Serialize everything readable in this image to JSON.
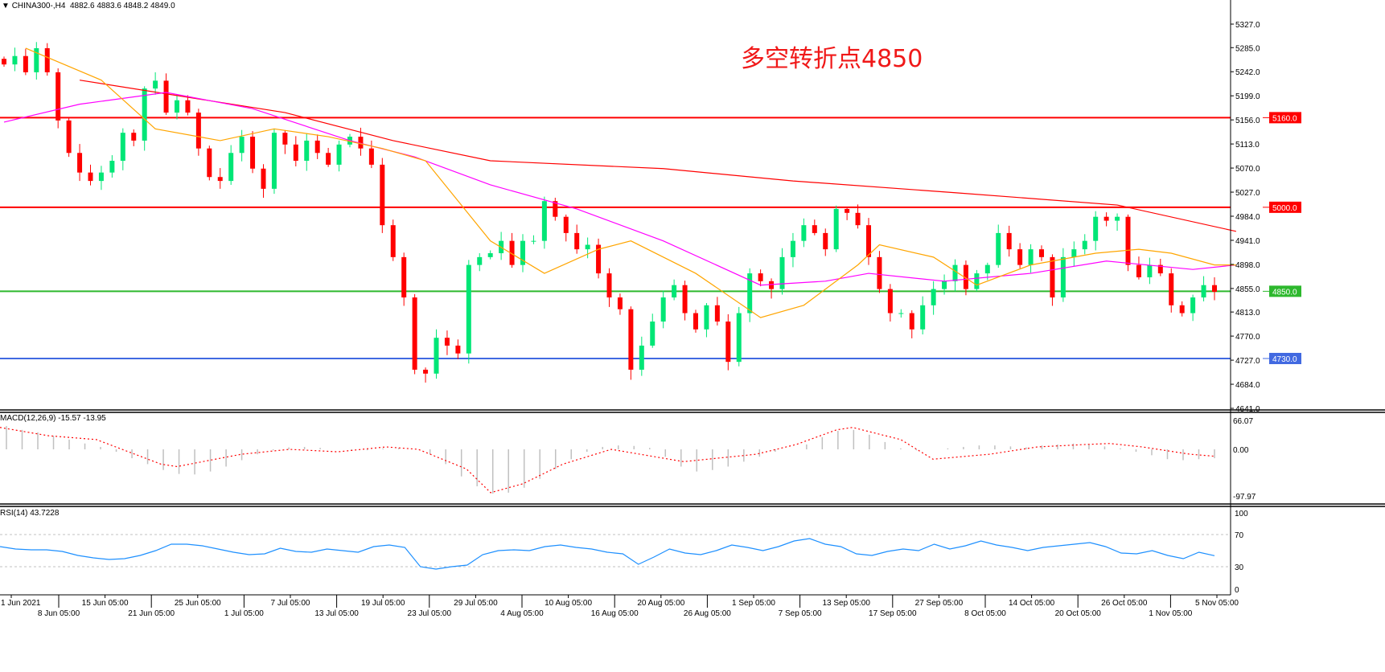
{
  "header": {
    "symbol": "CHINA300-,H4",
    "ohlc": "4882.6 4883.6 4848.2 4849.0"
  },
  "annotation": "多空转折点4850",
  "macd_label": "MACD(12,26,9) -15.57 -13.95",
  "rsi_label": "RSI(14) 43.7228",
  "colors": {
    "up": "#00e676",
    "down": "#ff0000",
    "ma_short": "#ffa500",
    "ma_mid": "#ff00ff",
    "ma_long": "#ff0000",
    "rsi": "#1e90ff",
    "macd_hist": "#c0c0c0",
    "macd_signal": "#ff0000"
  },
  "chart_data": [
    {
      "type": "candlestick",
      "name": "CHINA300-,H4",
      "price_axis": {
        "range": [
          4641,
          5327
        ],
        "ticks": [
          "5327.0",
          "5285.0",
          "5242.0",
          "5199.0",
          "5156.0",
          "5113.0",
          "5070.0",
          "5027.0",
          "4984.0",
          "4941.0",
          "4898.0",
          "4855.0",
          "4813.0",
          "4770.0",
          "4727.0",
          "4684.0",
          "4641.0"
        ]
      },
      "time_axis": {
        "ticks": [
          "1 Jun 2021",
          "8 Jun 05:00",
          "15 Jun 05:00",
          "21 Jun 05:00",
          "25 Jun 05:00",
          "1 Jul 05:00",
          "7 Jul 05:00",
          "13 Jul 05:00",
          "19 Jul 05:00",
          "23 Jul 05:00",
          "29 Jul 05:00",
          "4 Aug 05:00",
          "10 Aug 05:00",
          "16 Aug 05:00",
          "20 Aug 05:00",
          "26 Aug 05:00",
          "1 Sep 05:00",
          "7 Sep 05:00",
          "13 Sep 05:00",
          "17 Sep 05:00",
          "27 Sep 05:00",
          "8 Oct 05:00",
          "14 Oct 05:00",
          "20 Oct 05:00",
          "26 Oct 05:00",
          "1 Nov 05:00",
          "5 Nov 05:00"
        ]
      },
      "closes": [
        5255,
        5270,
        5241,
        5284,
        5241,
        5155,
        5097,
        5062,
        5047,
        5062,
        5083,
        5133,
        5119,
        5212,
        5226,
        5169,
        5191,
        5169,
        5105,
        5054,
        5047,
        5097,
        5126,
        5069,
        5033,
        5133,
        5112,
        5083,
        5119,
        5097,
        5076,
        5112,
        5126,
        5105,
        5076,
        4968,
        4911,
        4839,
        4710,
        4703,
        4767,
        4753,
        4739,
        4897,
        4911,
        4918,
        4940,
        4897,
        4940,
        4940,
        5011,
        4983,
        4954,
        4925,
        4933,
        4882,
        4839,
        4818,
        4710,
        4753,
        4796,
        4839,
        4861,
        4811,
        4782,
        4825,
        4796,
        4724,
        4811,
        4882,
        4868,
        4854,
        4911,
        4940,
        4968,
        4954,
        4925,
        4997,
        4990,
        4968,
        4911,
        4854,
        4811,
        4811,
        4782,
        4825,
        4854,
        4868,
        4897,
        4854,
        4882,
        4897,
        4954,
        4925,
        4897,
        4925,
        4911,
        4839,
        4911,
        4925,
        4940,
        4983,
        4976,
        4983,
        4897,
        4875,
        4897,
        4882,
        4825,
        4811,
        4839,
        4861,
        4849
      ],
      "moving_averages": [
        {
          "color_key": "ma_long",
          "points": [
            [
              7,
              5227
            ],
            [
              26,
              5169
            ],
            [
              36,
              5119
            ],
            [
              45,
              5083
            ],
            [
              61,
              5069
            ],
            [
              73,
              5047
            ],
            [
              88,
              5026
            ],
            [
              103,
              5004
            ],
            [
              114,
              4957
            ]
          ]
        },
        {
          "color_key": "ma_mid",
          "points": [
            [
              0,
              5152
            ],
            [
              7,
              5184
            ],
            [
              15,
              5205
            ],
            [
              23,
              5176
            ],
            [
              32,
              5119
            ],
            [
              38,
              5090
            ],
            [
              45,
              5040
            ],
            [
              53,
              4997
            ],
            [
              61,
              4940
            ],
            [
              70,
              4861
            ],
            [
              76,
              4868
            ],
            [
              80,
              4882
            ],
            [
              87,
              4868
            ],
            [
              95,
              4882
            ],
            [
              102,
              4904
            ],
            [
              110,
              4889
            ],
            [
              114,
              4897
            ]
          ]
        },
        {
          "color_key": "ma_short",
          "points": [
            [
              2,
              5284
            ],
            [
              9,
              5227
            ],
            [
              14,
              5140
            ],
            [
              20,
              5119
            ],
            [
              25,
              5140
            ],
            [
              30,
              5126
            ],
            [
              35,
              5105
            ],
            [
              39,
              5083
            ],
            [
              45,
              4940
            ],
            [
              50,
              4882
            ],
            [
              55,
              4925
            ],
            [
              58,
              4940
            ],
            [
              64,
              4882
            ],
            [
              70,
              4803
            ],
            [
              74,
              4825
            ],
            [
              79,
              4897
            ],
            [
              81,
              4933
            ],
            [
              86,
              4911
            ],
            [
              90,
              4861
            ],
            [
              95,
              4897
            ],
            [
              101,
              4918
            ],
            [
              105,
              4925
            ],
            [
              108,
              4918
            ],
            [
              112,
              4897
            ],
            [
              114,
              4897
            ]
          ]
        }
      ],
      "horizontal_lines": [
        {
          "price": 5160,
          "label": "5160.0",
          "color": "#ff0000"
        },
        {
          "price": 5000,
          "label": "5000.0",
          "color": "#ff0000"
        },
        {
          "price": 4850,
          "label": "4850.0",
          "color": "#2db82d"
        },
        {
          "price": 4730,
          "label": "4730.0",
          "color": "#4169e1"
        }
      ]
    },
    {
      "type": "bar",
      "name": "MACD(12,26,9)",
      "range": [
        -97.97,
        66.07
      ],
      "ticks": [
        "66.07",
        "0.00",
        "-97.97"
      ],
      "histogram": [
        48,
        40,
        35,
        28,
        20,
        12,
        5,
        -5,
        -18,
        -30,
        -42,
        -50,
        -51,
        -45,
        -35,
        -22,
        -10,
        -2,
        4,
        5,
        3,
        0,
        -3,
        -2,
        2,
        3,
        0,
        -10,
        -30,
        -55,
        -75,
        -90,
        -88,
        -78,
        -60,
        -40,
        -20,
        -5,
        5,
        8,
        7,
        3,
        -15,
        -35,
        -45,
        -42,
        -35,
        -25,
        -15,
        -5,
        0,
        10,
        25,
        38,
        40,
        30,
        15,
        2,
        -2,
        0,
        2,
        5,
        8,
        8,
        6,
        4,
        8,
        10,
        12,
        10,
        6,
        2,
        -5,
        -12,
        -20,
        -22,
        -20,
        -18
      ],
      "signal": [
        [
          0,
          45
        ],
        [
          60,
          28
        ],
        [
          120,
          20
        ],
        [
          200,
          -30
        ],
        [
          220,
          -35
        ],
        [
          300,
          -10
        ],
        [
          360,
          0
        ],
        [
          420,
          -5
        ],
        [
          480,
          5
        ],
        [
          520,
          0
        ],
        [
          580,
          -40
        ],
        [
          610,
          -88
        ],
        [
          650,
          -70
        ],
        [
          700,
          -30
        ],
        [
          760,
          0
        ],
        [
          850,
          -25
        ],
        [
          940,
          -10
        ],
        [
          990,
          10
        ],
        [
          1040,
          40
        ],
        [
          1060,
          45
        ],
        [
          1120,
          20
        ],
        [
          1160,
          -20
        ],
        [
          1230,
          -10
        ],
        [
          1290,
          5
        ],
        [
          1350,
          10
        ],
        [
          1380,
          12
        ],
        [
          1420,
          5
        ],
        [
          1480,
          -10
        ],
        [
          1510,
          -14
        ]
      ]
    },
    {
      "type": "line",
      "name": "RSI(14)",
      "range": [
        0,
        100
      ],
      "ticks": [
        "100",
        "70",
        "30",
        "0"
      ],
      "levels": [
        70,
        30
      ],
      "values": [
        55,
        52,
        51,
        51,
        49,
        44,
        41,
        39,
        40,
        44,
        50,
        58,
        58,
        56,
        52,
        48,
        45,
        46,
        53,
        49,
        48,
        52,
        50,
        48,
        55,
        57,
        54,
        30,
        27,
        30,
        32,
        45,
        50,
        51,
        50,
        55,
        57,
        54,
        52,
        48,
        46,
        33,
        42,
        52,
        47,
        45,
        50,
        57,
        54,
        50,
        55,
        62,
        65,
        58,
        55,
        46,
        44,
        49,
        52,
        50,
        58,
        52,
        56,
        62,
        57,
        54,
        50,
        54,
        56,
        58,
        60,
        55,
        47,
        46,
        50,
        44,
        40,
        48,
        43.7
      ]
    }
  ]
}
